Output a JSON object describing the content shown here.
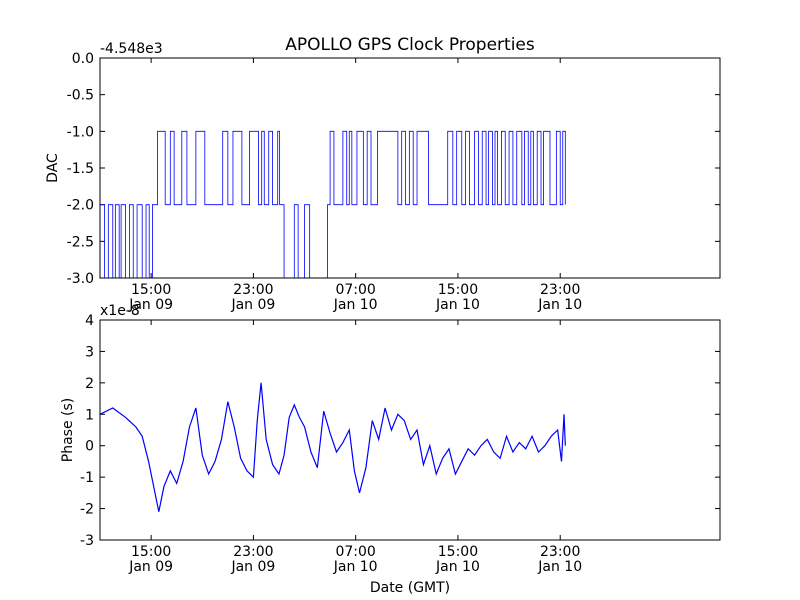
{
  "chart_data": [
    {
      "type": "line",
      "title": "APOLLO GPS Clock Properties",
      "ylabel": "DAC",
      "xlabel": "",
      "offset_label": "-4.548e3",
      "ylim": [
        -3.0,
        0.0
      ],
      "yticks": [
        "0.0",
        "-0.5",
        "-1.0",
        "-1.5",
        "-2.0",
        "-2.5",
        "-3.0"
      ],
      "xlim": [
        11.0,
        59.5
      ],
      "xticks": [
        {
          "x": 15,
          "time": "15:00",
          "date": "Jan 09"
        },
        {
          "x": 23,
          "time": "23:00",
          "date": "Jan 09"
        },
        {
          "x": 31,
          "time": "07:00",
          "date": "Jan 10"
        },
        {
          "x": 39,
          "time": "15:00",
          "date": "Jan 10"
        },
        {
          "x": 47,
          "time": "23:00",
          "date": "Jan 10"
        }
      ],
      "color": "#0000ff",
      "series": [
        {
          "x": [
            11.0,
            11.3,
            11.35,
            11.6,
            11.65,
            11.9,
            12.0,
            12.15,
            12.2,
            12.45,
            12.5,
            12.6,
            12.65,
            12.9,
            13.0,
            13.2,
            13.3,
            13.55,
            13.6,
            13.8,
            13.9,
            14.2,
            14.3,
            14.5,
            14.6,
            14.75,
            14.85,
            15.0,
            15.1,
            15.4,
            15.5,
            16.0,
            16.1,
            16.4,
            16.5,
            16.7,
            16.8,
            17.3,
            17.4,
            17.7,
            17.8,
            18.4,
            18.5,
            19.1,
            19.2,
            20.5,
            20.6,
            20.9,
            21.0,
            21.3,
            21.4,
            22.0,
            22.1,
            22.6,
            22.7,
            23.3,
            23.4,
            23.6,
            23.65,
            23.8,
            23.85,
            24.1,
            24.2,
            24.4,
            24.5,
            24.8,
            24.9,
            25.0,
            25.05,
            25.3,
            25.4,
            26.1,
            26.2,
            26.4,
            26.5,
            26.9,
            27.0,
            27.3,
            27.4,
            28.7,
            28.8,
            28.9,
            29.0,
            29.2,
            29.3,
            29.9,
            30.0,
            30.2,
            30.3,
            30.4,
            30.5,
            30.6,
            30.7,
            31.0,
            31.1,
            31.5,
            31.6,
            31.8,
            31.9,
            32.1,
            32.2,
            32.6,
            32.7,
            34.2,
            34.3,
            34.5,
            34.6,
            34.8,
            34.9,
            35.1,
            35.2,
            35.4,
            35.5,
            35.7,
            35.8,
            36.6,
            36.7,
            38.1,
            38.2,
            38.5,
            38.6,
            38.8,
            38.9,
            39.2,
            39.3,
            39.5,
            39.6,
            39.8,
            39.9,
            40.2,
            40.3,
            40.5,
            40.6,
            40.8,
            40.9,
            41.1,
            41.2,
            41.3,
            41.4,
            41.6,
            41.7,
            41.8,
            41.9,
            42.0,
            42.1,
            42.3,
            42.4,
            42.6,
            42.7,
            42.9,
            43.0,
            43.2,
            43.3,
            43.5,
            43.6,
            43.9,
            44.0,
            44.1,
            44.2,
            44.4,
            44.5,
            44.6,
            44.7,
            44.8,
            44.9,
            45.1,
            45.2,
            45.4,
            45.5,
            45.6,
            45.7,
            46.1,
            46.2,
            46.6,
            46.7,
            46.9,
            47.0,
            47.1,
            47.2,
            47.35,
            47.4
          ],
          "y": [
            -2.0,
            -2.0,
            -3.0,
            -3.0,
            -2.0,
            -2.0,
            -3.0,
            -3.0,
            -2.0,
            -2.0,
            -3.0,
            -3.0,
            -2.0,
            -2.0,
            -3.0,
            -3.0,
            -2.0,
            -2.0,
            -3.0,
            -3.0,
            -2.0,
            -2.0,
            -3.0,
            -3.0,
            -2.0,
            -2.0,
            -3.0,
            -3.0,
            -2.0,
            -2.0,
            -1.0,
            -1.0,
            -2.0,
            -2.0,
            -1.0,
            -1.0,
            -2.0,
            -2.0,
            -1.0,
            -1.0,
            -2.0,
            -2.0,
            -1.0,
            -1.0,
            -2.0,
            -2.0,
            -1.0,
            -1.0,
            -2.0,
            -2.0,
            -1.0,
            -1.0,
            -2.0,
            -2.0,
            -1.0,
            -1.0,
            -2.0,
            -2.0,
            -1.0,
            -1.0,
            -2.0,
            -2.0,
            -1.0,
            -1.0,
            -2.0,
            -2.0,
            -1.0,
            -1.0,
            -2.0,
            -2.0,
            -3.0,
            -3.0,
            -2.0,
            -2.0,
            -3.0,
            -3.0,
            -2.0,
            -2.0,
            -3.0,
            -3.0,
            -2.0,
            -2.0,
            -1.0,
            -1.0,
            -2.0,
            -2.0,
            -1.0,
            -1.0,
            -2.0,
            -2.0,
            -1.0,
            -1.0,
            -2.0,
            -2.0,
            -1.0,
            -1.0,
            -2.0,
            -2.0,
            -1.0,
            -1.0,
            -2.0,
            -2.0,
            -1.0,
            -1.0,
            -2.0,
            -2.0,
            -1.0,
            -1.0,
            -2.0,
            -2.0,
            -1.0,
            -1.0,
            -2.0,
            -2.0,
            -1.0,
            -1.0,
            -2.0,
            -2.0,
            -1.0,
            -1.0,
            -2.0,
            -2.0,
            -1.0,
            -1.0,
            -2.0,
            -2.0,
            -1.0,
            -1.0,
            -2.0,
            -2.0,
            -1.0,
            -1.0,
            -2.0,
            -2.0,
            -1.0,
            -1.0,
            -2.0,
            -2.0,
            -1.0,
            -1.0,
            -2.0,
            -2.0,
            -1.0,
            -1.0,
            -2.0,
            -2.0,
            -1.0,
            -1.0,
            -2.0,
            -2.0,
            -1.0,
            -1.0,
            -2.0,
            -2.0,
            -1.0,
            -1.0,
            -2.0,
            -2.0,
            -1.0,
            -1.0,
            -2.0,
            -2.0,
            -1.0,
            -1.0,
            -2.0,
            -2.0,
            -1.0,
            -1.0,
            -2.0,
            -2.0,
            -1.0,
            -1.0,
            -2.0,
            -2.0,
            -1.0,
            -1.0,
            -2.0,
            -2.0,
            -1.0,
            -1.0,
            -2.0
          ]
        }
      ]
    },
    {
      "type": "line",
      "title": "",
      "ylabel": "Phase (s)",
      "xlabel": "Date (GMT)",
      "offset_label": "x1e-8",
      "ylim": [
        -3,
        4
      ],
      "yticks": [
        "4",
        "3",
        "2",
        "1",
        "0",
        "-1",
        "-2",
        "-3"
      ],
      "xlim": [
        11.0,
        59.5
      ],
      "xticks": [
        {
          "x": 15,
          "time": "15:00",
          "date": "Jan 09"
        },
        {
          "x": 23,
          "time": "23:00",
          "date": "Jan 09"
        },
        {
          "x": 31,
          "time": "07:00",
          "date": "Jan 10"
        },
        {
          "x": 39,
          "time": "15:00",
          "date": "Jan 10"
        },
        {
          "x": 47,
          "time": "23:00",
          "date": "Jan 10"
        }
      ],
      "color": "#0000ff",
      "series": [
        {
          "x": [
            11.0,
            12.0,
            13.0,
            13.8,
            14.3,
            14.8,
            15.3,
            15.6,
            16.0,
            16.5,
            17.0,
            17.5,
            18.0,
            18.5,
            19.0,
            19.5,
            20.0,
            20.5,
            21.0,
            21.5,
            22.0,
            22.5,
            23.0,
            23.3,
            23.6,
            24.0,
            24.5,
            25.0,
            25.4,
            25.8,
            26.2,
            26.6,
            27.0,
            27.5,
            28.0,
            28.5,
            29.0,
            29.5,
            30.0,
            30.5,
            30.9,
            31.3,
            31.8,
            32.3,
            32.8,
            33.3,
            33.8,
            34.3,
            34.8,
            35.3,
            35.8,
            36.3,
            36.8,
            37.3,
            37.8,
            38.3,
            38.8,
            39.3,
            39.8,
            40.3,
            40.8,
            41.3,
            41.8,
            42.3,
            42.8,
            43.3,
            43.8,
            44.3,
            44.8,
            45.3,
            45.8,
            46.3,
            46.8,
            47.1,
            47.3,
            47.4
          ],
          "y": [
            1.0,
            1.2,
            0.9,
            0.6,
            0.3,
            -0.5,
            -1.5,
            -2.1,
            -1.3,
            -0.8,
            -1.2,
            -0.5,
            0.6,
            1.2,
            -0.3,
            -0.9,
            -0.5,
            0.2,
            1.4,
            0.6,
            -0.4,
            -0.8,
            -1.0,
            0.8,
            2.0,
            0.2,
            -0.6,
            -0.9,
            -0.3,
            0.9,
            1.3,
            0.9,
            0.6,
            -0.2,
            -0.7,
            1.1,
            0.4,
            -0.2,
            0.1,
            0.5,
            -0.8,
            -1.5,
            -0.7,
            0.8,
            0.2,
            1.2,
            0.5,
            1.0,
            0.8,
            0.2,
            0.5,
            -0.6,
            0.0,
            -0.9,
            -0.4,
            -0.1,
            -0.9,
            -0.5,
            -0.1,
            -0.3,
            0.0,
            0.2,
            -0.2,
            -0.4,
            0.3,
            -0.2,
            0.1,
            -0.1,
            0.3,
            -0.2,
            0.0,
            0.3,
            0.5,
            -0.5,
            1.0,
            0.0
          ]
        }
      ]
    }
  ]
}
